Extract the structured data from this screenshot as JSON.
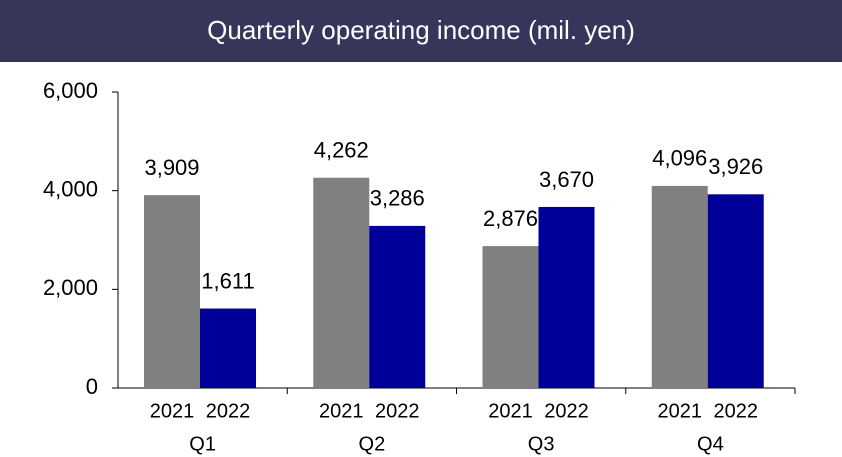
{
  "chart_data": {
    "type": "bar",
    "title": "Quarterly operating income (mil. yen)",
    "categories": [
      "Q1",
      "Q2",
      "Q3",
      "Q4"
    ],
    "series": [
      {
        "name": "2021",
        "color": "#808080",
        "values": [
          3909,
          4262,
          2876,
          4096
        ],
        "value_labels": [
          "3,909",
          "4,262",
          "2,876",
          "4,096"
        ]
      },
      {
        "name": "2022",
        "color": "#000099",
        "values": [
          1611,
          3286,
          3670,
          3926
        ],
        "value_labels": [
          "1,611",
          "3,286",
          "3,670",
          "3,926"
        ]
      }
    ],
    "ylim": [
      0,
      6000
    ],
    "yticks": [
      0,
      {
        "value": 2000,
        "label": "2,000"
      },
      {
        "value": 4000,
        "label": "4,000"
      },
      {
        "value": 6000,
        "label": "6,000"
      }
    ]
  }
}
